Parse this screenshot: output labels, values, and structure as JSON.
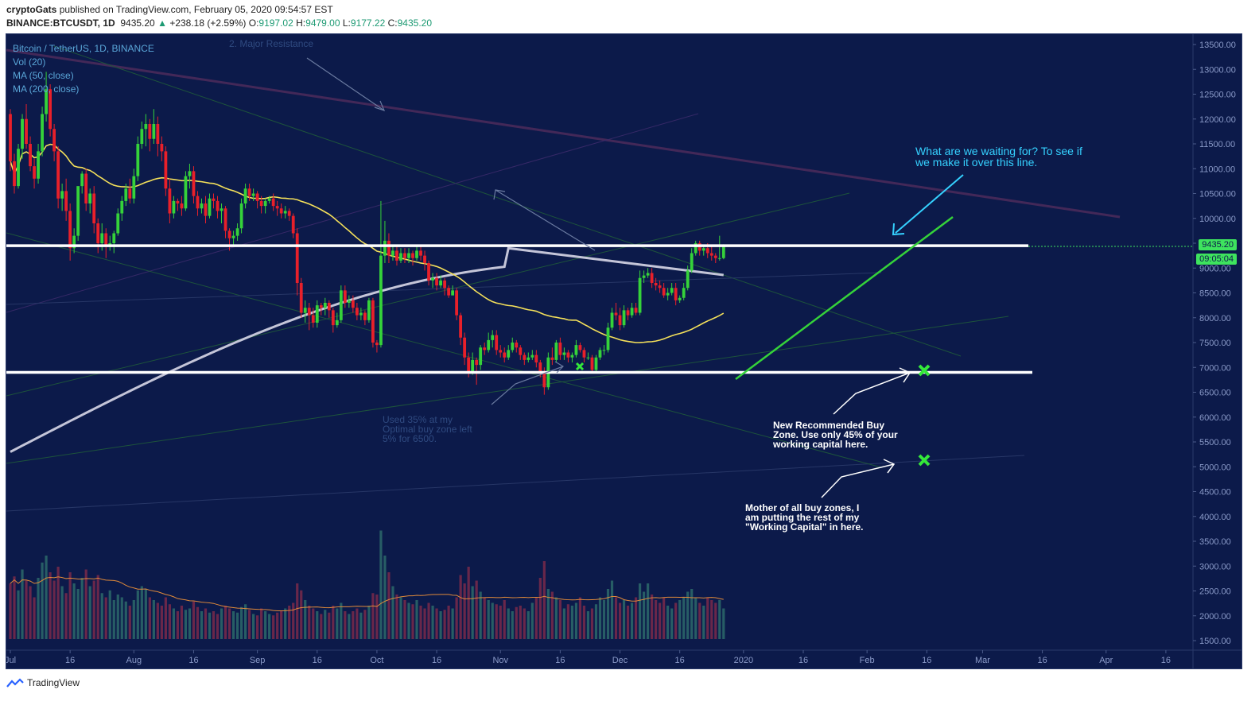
{
  "header": {
    "publisher": "cryptoGats",
    "published_text": "published on TradingView.com, February 05, 2020 09:54:57 EST",
    "symbol": "BINANCE:BTCUSDT, 1D",
    "last": "9435.20",
    "change": "+238.18 (+2.59%)",
    "open_label": "O:",
    "open": "9197.02",
    "high_label": "H:",
    "high": "9479.00",
    "low_label": "L:",
    "low": "9177.22",
    "close_label": "C:",
    "close": "9435.20"
  },
  "legend": {
    "title": "Bitcoin / TetherUS, 1D, BINANCE",
    "vol": "Vol (20)",
    "ma50": "MA (50, close)",
    "ma200": "MA (200, close)"
  },
  "notes": {
    "major_resistance": "2. Major Resistance",
    "waiting": "What are we waiting for? To see if\nwe make it over this line.",
    "used35": "Used 35% at my\nOptimal buy zone left\n5% for 6500.",
    "new_buy_zone": "New Recommended Buy\nZone. Use only 45% of your\nworking capital here.",
    "mother_zone": "Mother of all buy zones, I\nam putting the rest of my\n\"Working Capital\" in here."
  },
  "price_tags": {
    "last_price": "9435.20",
    "countdown": "09:05:04"
  },
  "footer": {
    "brand": "TradingView"
  },
  "colors": {
    "background": "#0c1a4a",
    "up": "#35d23a",
    "down": "#e8202a",
    "ma50": "#f4e05a",
    "ma200": "#d8d8e8",
    "support": "#ffffff",
    "trendline": "#35d23a",
    "annotation_cyan": "#35d1ff"
  },
  "chart_data": {
    "type": "candlestick",
    "y_axis_ticks": [
      "13500.00",
      "13000.00",
      "12500.00",
      "12000.00",
      "11500.00",
      "11000.00",
      "10500.00",
      "10000.00",
      "9500.00",
      "9000.00",
      "8500.00",
      "8000.00",
      "7500.00",
      "7000.00",
      "6500.00",
      "6000.00",
      "5500.00",
      "5000.00",
      "4500.00",
      "4000.00",
      "3500.00",
      "3000.00",
      "2500.00",
      "2000.00",
      "1500.00"
    ],
    "y_range": [
      1300,
      13900
    ],
    "x_axis_ticks": [
      "Jul",
      "16",
      "Aug",
      "16",
      "Sep",
      "16",
      "Oct",
      "16",
      "Nov",
      "16",
      "Dec",
      "16",
      "2020",
      "16",
      "Feb",
      "16",
      "Mar",
      "16",
      "Apr",
      "16"
    ],
    "x_tick_days": [
      0,
      15,
      31,
      46,
      62,
      77,
      92,
      107,
      123,
      138,
      153,
      168,
      184,
      199,
      215,
      230,
      244,
      259,
      275,
      290
    ],
    "horizontal_lines": [
      {
        "name": "resistance",
        "price": 9450
      },
      {
        "name": "support",
        "price": 6900
      }
    ],
    "candles": [
      [
        12100,
        11150,
        12200,
        10950
      ],
      [
        11150,
        10650,
        11300,
        10500
      ],
      [
        10650,
        11400,
        11500,
        10600
      ],
      [
        11400,
        12000,
        12100,
        11200
      ],
      [
        12000,
        11500,
        12300,
        11400
      ],
      [
        11500,
        11050,
        11650,
        10950
      ],
      [
        11050,
        10800,
        11200,
        10600
      ],
      [
        10800,
        11350,
        11500,
        10700
      ],
      [
        11350,
        12100,
        12250,
        11250
      ],
      [
        12100,
        12600,
        12950,
        11950
      ],
      [
        12600,
        11800,
        12700,
        11650
      ],
      [
        11800,
        11350,
        11900,
        11150
      ],
      [
        11350,
        10400,
        11450,
        10200
      ],
      [
        10400,
        10550,
        10700,
        10150
      ],
      [
        10550,
        10150,
        10800,
        9950
      ],
      [
        10150,
        9400,
        10300,
        9150
      ],
      [
        9400,
        9650,
        9800,
        9300
      ],
      [
        9650,
        10650,
        9900,
        9550
      ],
      [
        10650,
        10900,
        10950,
        10500
      ],
      [
        10900,
        10300,
        11000,
        10150
      ],
      [
        10300,
        10500,
        10600,
        10100
      ],
      [
        10500,
        9900,
        10650,
        9700
      ],
      [
        9900,
        9500,
        10000,
        9300
      ],
      [
        9500,
        9700,
        9900,
        9350
      ],
      [
        9700,
        9450,
        9800,
        9200
      ],
      [
        9450,
        9500,
        9650,
        9350
      ],
      [
        9500,
        9700,
        9750,
        9300
      ],
      [
        9700,
        10100,
        10200,
        9650
      ],
      [
        10100,
        10350,
        10450,
        9950
      ],
      [
        10350,
        10600,
        10700,
        10250
      ],
      [
        10600,
        10400,
        10800,
        10300
      ],
      [
        10400,
        10850,
        11000,
        10300
      ],
      [
        10850,
        11500,
        11650,
        10750
      ],
      [
        11500,
        11800,
        11950,
        11400
      ],
      [
        11800,
        11900,
        12100,
        11450
      ],
      [
        11900,
        11600,
        12000,
        11350
      ],
      [
        11600,
        11900,
        12200,
        11500
      ],
      [
        11900,
        11500,
        12050,
        11250
      ],
      [
        11500,
        11350,
        11650,
        11150
      ],
      [
        11350,
        10600,
        11450,
        10450
      ],
      [
        10600,
        10100,
        10800,
        9900
      ],
      [
        10100,
        10350,
        10450,
        10000
      ],
      [
        10350,
        10300,
        10400,
        10150
      ],
      [
        10300,
        10200,
        10450,
        10050
      ],
      [
        10200,
        10850,
        10950,
        10150
      ],
      [
        10850,
        10950,
        11100,
        10600
      ],
      [
        10950,
        10450,
        11050,
        10300
      ],
      [
        10450,
        10200,
        10550,
        10050
      ],
      [
        10200,
        10300,
        10400,
        10100
      ],
      [
        10300,
        10050,
        10450,
        9900
      ],
      [
        10050,
        10400,
        10500,
        10000
      ],
      [
        10400,
        10350,
        10500,
        10200
      ],
      [
        10350,
        10150,
        10450,
        10000
      ],
      [
        10150,
        10200,
        10300,
        9900
      ],
      [
        10200,
        9750,
        10250,
        9600
      ],
      [
        9750,
        9600,
        9800,
        9350
      ],
      [
        9600,
        9650,
        9750,
        9450
      ],
      [
        9650,
        9800,
        9900,
        9550
      ],
      [
        9800,
        10300,
        10400,
        9700
      ],
      [
        10300,
        10600,
        10700,
        10200
      ],
      [
        10600,
        10450,
        10700,
        10350
      ],
      [
        10450,
        10500,
        10600,
        10350
      ],
      [
        10500,
        10350,
        10550,
        10200
      ],
      [
        10350,
        10250,
        10450,
        10100
      ],
      [
        10250,
        10350,
        10400,
        10100
      ],
      [
        10350,
        10400,
        10450,
        10300
      ],
      [
        10400,
        10250,
        10500,
        10150
      ],
      [
        10250,
        10200,
        10350,
        10050
      ],
      [
        10200,
        10100,
        10300,
        10000
      ],
      [
        10100,
        10150,
        10250,
        10000
      ],
      [
        10150,
        10050,
        10200,
        9950
      ],
      [
        10050,
        9700,
        10100,
        9600
      ],
      [
        9700,
        8700,
        9800,
        8450
      ],
      [
        8700,
        8100,
        8800,
        8000
      ],
      [
        8100,
        8200,
        8350,
        7900
      ],
      [
        8200,
        8050,
        8300,
        7750
      ],
      [
        8050,
        7900,
        8200,
        7800
      ],
      [
        7900,
        8250,
        8350,
        7800
      ],
      [
        8250,
        8200,
        8300,
        8050
      ],
      [
        8200,
        8300,
        8400,
        8050
      ],
      [
        8300,
        8150,
        8350,
        8000
      ],
      [
        8150,
        7850,
        8200,
        7700
      ],
      [
        7850,
        7950,
        8100,
        7800
      ],
      [
        7950,
        8550,
        8650,
        7900
      ],
      [
        8550,
        8300,
        8650,
        8200
      ],
      [
        8300,
        8350,
        8450,
        8200
      ],
      [
        8350,
        8200,
        8450,
        8100
      ],
      [
        8200,
        8050,
        8300,
        7950
      ],
      [
        8050,
        8100,
        8200,
        7950
      ],
      [
        8100,
        7950,
        8150,
        7850
      ],
      [
        7950,
        8350,
        8400,
        7900
      ],
      [
        8350,
        7500,
        8400,
        7400
      ],
      [
        7500,
        7450,
        7550,
        7300
      ],
      [
        7450,
        9250,
        10350,
        7400
      ],
      [
        9250,
        9550,
        9950,
        9100
      ],
      [
        9550,
        9250,
        9700,
        9100
      ],
      [
        9250,
        9350,
        9450,
        9150
      ],
      [
        9350,
        9150,
        9450,
        9050
      ],
      [
        9150,
        9300,
        9400,
        9100
      ],
      [
        9300,
        9200,
        9400,
        9100
      ],
      [
        9200,
        9300,
        9400,
        9100
      ],
      [
        9300,
        9200,
        9350,
        9050
      ],
      [
        9200,
        9350,
        9450,
        9150
      ],
      [
        9350,
        9250,
        9450,
        9150
      ],
      [
        9250,
        9100,
        9350,
        8950
      ],
      [
        9100,
        8750,
        9150,
        8650
      ],
      [
        8750,
        8800,
        8900,
        8600
      ],
      [
        8800,
        8650,
        8900,
        8550
      ],
      [
        8650,
        8750,
        8850,
        8600
      ],
      [
        8750,
        8600,
        8800,
        8450
      ],
      [
        8600,
        8450,
        8650,
        8400
      ],
      [
        8450,
        8550,
        8650,
        8450
      ],
      [
        8550,
        8050,
        8600,
        7950
      ],
      [
        8050,
        7600,
        8100,
        7450
      ],
      [
        7600,
        7200,
        7700,
        7050
      ],
      [
        7200,
        6900,
        7300,
        6800
      ],
      [
        6900,
        7150,
        7300,
        6850
      ],
      [
        7150,
        7050,
        7200,
        6650
      ],
      [
        7050,
        7400,
        7450,
        6950
      ],
      [
        7400,
        7350,
        7500,
        7250
      ],
      [
        7350,
        7550,
        7700,
        7300
      ],
      [
        7550,
        7650,
        7750,
        7400
      ],
      [
        7650,
        7350,
        7750,
        7250
      ],
      [
        7350,
        7300,
        7450,
        7200
      ],
      [
        7300,
        7200,
        7400,
        7100
      ],
      [
        7200,
        7350,
        7450,
        7150
      ],
      [
        7350,
        7500,
        7600,
        7300
      ],
      [
        7500,
        7400,
        7550,
        7300
      ],
      [
        7400,
        7250,
        7450,
        7150
      ],
      [
        7250,
        7150,
        7300,
        7050
      ],
      [
        7150,
        7200,
        7300,
        7100
      ],
      [
        7200,
        7250,
        7350,
        7150
      ],
      [
        7250,
        7100,
        7350,
        7000
      ],
      [
        7100,
        6900,
        7150,
        6800
      ],
      [
        6900,
        6600,
        7000,
        6450
      ],
      [
        6600,
        7200,
        7300,
        6550
      ],
      [
        7200,
        7150,
        7400,
        7050
      ],
      [
        7150,
        7500,
        7550,
        7100
      ],
      [
        7500,
        7250,
        7600,
        7150
      ],
      [
        7250,
        7300,
        7400,
        7150
      ],
      [
        7300,
        7200,
        7350,
        7100
      ],
      [
        7200,
        7250,
        7300,
        7100
      ],
      [
        7250,
        7450,
        7550,
        7200
      ],
      [
        7450,
        7350,
        7500,
        7300
      ],
      [
        7350,
        7200,
        7400,
        7100
      ],
      [
        7200,
        7200,
        7300,
        7150
      ],
      [
        7200,
        6950,
        7250,
        6900
      ],
      [
        6950,
        7200,
        7250,
        6900
      ],
      [
        7200,
        7350,
        7400,
        7150
      ],
      [
        7350,
        7350,
        7450,
        7250
      ],
      [
        7350,
        7800,
        7900,
        7300
      ],
      [
        7800,
        8100,
        8200,
        7750
      ],
      [
        8100,
        8050,
        8300,
        7950
      ],
      [
        8050,
        7850,
        8200,
        7750
      ],
      [
        7850,
        8150,
        8250,
        7800
      ],
      [
        8150,
        8050,
        8200,
        7950
      ],
      [
        8050,
        8200,
        8300,
        8000
      ],
      [
        8200,
        8100,
        8300,
        8050
      ],
      [
        8100,
        8800,
        8950,
        8050
      ],
      [
        8800,
        8850,
        8950,
        8700
      ],
      [
        8850,
        8900,
        9000,
        8800
      ],
      [
        8900,
        8700,
        9000,
        8600
      ],
      [
        8700,
        8650,
        8800,
        8550
      ],
      [
        8650,
        8600,
        8750,
        8500
      ],
      [
        8600,
        8450,
        8700,
        8400
      ],
      [
        8450,
        8500,
        8600,
        8350
      ],
      [
        8500,
        8600,
        8700,
        8450
      ],
      [
        8600,
        8350,
        8700,
        8250
      ],
      [
        8350,
        8400,
        8450,
        8300
      ],
      [
        8400,
        8600,
        8700,
        8350
      ],
      [
        8600,
        8950,
        9050,
        8550
      ],
      [
        8950,
        9300,
        9400,
        8900
      ],
      [
        9300,
        9500,
        9550,
        9250
      ],
      [
        9500,
        9350,
        9550,
        9250
      ],
      [
        9350,
        9400,
        9450,
        9250
      ],
      [
        9400,
        9300,
        9500,
        9200
      ],
      [
        9300,
        9250,
        9450,
        9150
      ],
      [
        9250,
        9200,
        9300,
        9100
      ],
      [
        9200,
        9200,
        9650,
        9150
      ],
      [
        9200,
        9435,
        9479,
        9177
      ]
    ],
    "volume_scale_max": 100,
    "volume": [
      40,
      45,
      35,
      50,
      42,
      38,
      30,
      44,
      55,
      60,
      48,
      42,
      52,
      38,
      33,
      48,
      40,
      36,
      44,
      50,
      38,
      42,
      46,
      33,
      30,
      35,
      28,
      32,
      30,
      27,
      24,
      28,
      35,
      38,
      36,
      30,
      28,
      26,
      24,
      30,
      25,
      22,
      20,
      24,
      21,
      22,
      27,
      23,
      20,
      22,
      19,
      20,
      18,
      22,
      24,
      22,
      20,
      19,
      23,
      25,
      21,
      18,
      17,
      22,
      20,
      18,
      17,
      19,
      20,
      22,
      24,
      26,
      40,
      35,
      28,
      24,
      22,
      20,
      18,
      21,
      19,
      24,
      22,
      26,
      20,
      18,
      20,
      22,
      19,
      21,
      24,
      33,
      32,
      78,
      60,
      48,
      38,
      32,
      30,
      28,
      26,
      25,
      28,
      24,
      22,
      26,
      24,
      22,
      20,
      21,
      24,
      22,
      30,
      46,
      40,
      52,
      38,
      42,
      34,
      30,
      28,
      26,
      25,
      24,
      28,
      22,
      20,
      23,
      24,
      22,
      20,
      26,
      30,
      44,
      56,
      36,
      34,
      30,
      28,
      22,
      25,
      24,
      26,
      30,
      24,
      20,
      22,
      25,
      30,
      28,
      36,
      42,
      30,
      26,
      28,
      24,
      26,
      30,
      40,
      34,
      40,
      32,
      28,
      26,
      30,
      24,
      22,
      26,
      28,
      30,
      34,
      36,
      30,
      26,
      24,
      30,
      28,
      26,
      28,
      22
    ],
    "ma50": [
      null
    ],
    "ma200_start": 5300,
    "ma200_end": 8850
  }
}
